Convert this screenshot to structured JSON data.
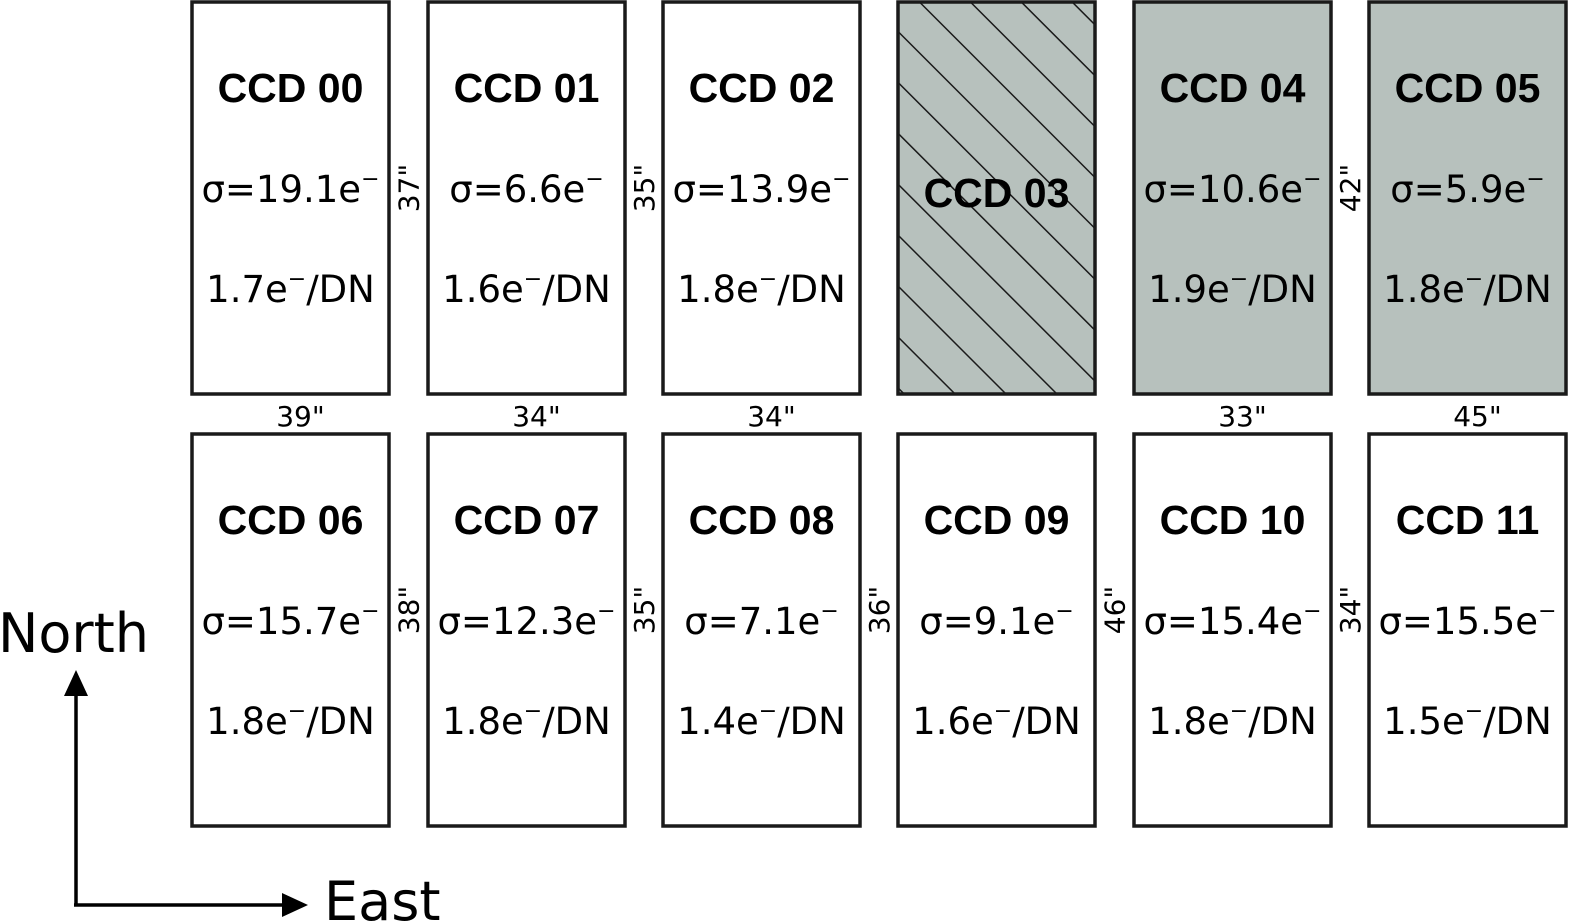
{
  "colors": {
    "border": "#1a1a1a",
    "white_fill": "#ffffff",
    "gray_fill": "#b7c1bd",
    "hatch": "#1a1a1a"
  },
  "ccds": [
    {
      "name": "CCD 00",
      "noise": "σ=19.1e",
      "gain": "1.7e",
      "style": "white"
    },
    {
      "name": "CCD 01",
      "noise": "σ=6.6e",
      "gain": "1.6e",
      "style": "white"
    },
    {
      "name": "CCD 02",
      "noise": "σ=13.9e",
      "gain": "1.8e",
      "style": "white"
    },
    {
      "name": "CCD 03",
      "noise": "",
      "gain": "",
      "style": "hatched"
    },
    {
      "name": "CCD 04",
      "noise": "σ=10.6e",
      "gain": "1.9e",
      "style": "gray"
    },
    {
      "name": "CCD 05",
      "noise": "σ=5.9e",
      "gain": "1.8e",
      "style": "gray"
    },
    {
      "name": "CCD 06",
      "noise": "σ=15.7e",
      "gain": "1.8e",
      "style": "white"
    },
    {
      "name": "CCD 07",
      "noise": "σ=12.3e",
      "gain": "1.8e",
      "style": "white"
    },
    {
      "name": "CCD 08",
      "noise": "σ=7.1e",
      "gain": "1.4e",
      "style": "white"
    },
    {
      "name": "CCD 09",
      "noise": "σ=9.1e",
      "gain": "1.6e",
      "style": "white"
    },
    {
      "name": "CCD 10",
      "noise": "σ=15.4e",
      "gain": "1.8e",
      "style": "white"
    },
    {
      "name": "CCD 11",
      "noise": "σ=15.5e",
      "gain": "1.5e",
      "style": "white"
    }
  ],
  "units": {
    "electron_sup": "−",
    "gain_suffix": "/DN"
  },
  "gaps": {
    "vertical": [
      {
        "label": "39\"",
        "column": 0
      },
      {
        "label": "34\"",
        "column": 1
      },
      {
        "label": "34\"",
        "column": 2
      },
      {
        "label": "33\"",
        "column": 4
      },
      {
        "label": "45\"",
        "column": 5
      }
    ],
    "horizontal": [
      {
        "label": "37\"",
        "row": 0,
        "after_column": 0
      },
      {
        "label": "35\"",
        "row": 0,
        "after_column": 1
      },
      {
        "label": "42\"",
        "row": 0,
        "after_column": 4
      },
      {
        "label": "38\"",
        "row": 1,
        "after_column": 0
      },
      {
        "label": "35\"",
        "row": 1,
        "after_column": 1
      },
      {
        "label": "36\"",
        "row": 1,
        "after_column": 2
      },
      {
        "label": "46\"",
        "row": 1,
        "after_column": 3
      },
      {
        "label": "34\"",
        "row": 1,
        "after_column": 4
      }
    ]
  },
  "compass": {
    "north": "North",
    "east": "East"
  }
}
